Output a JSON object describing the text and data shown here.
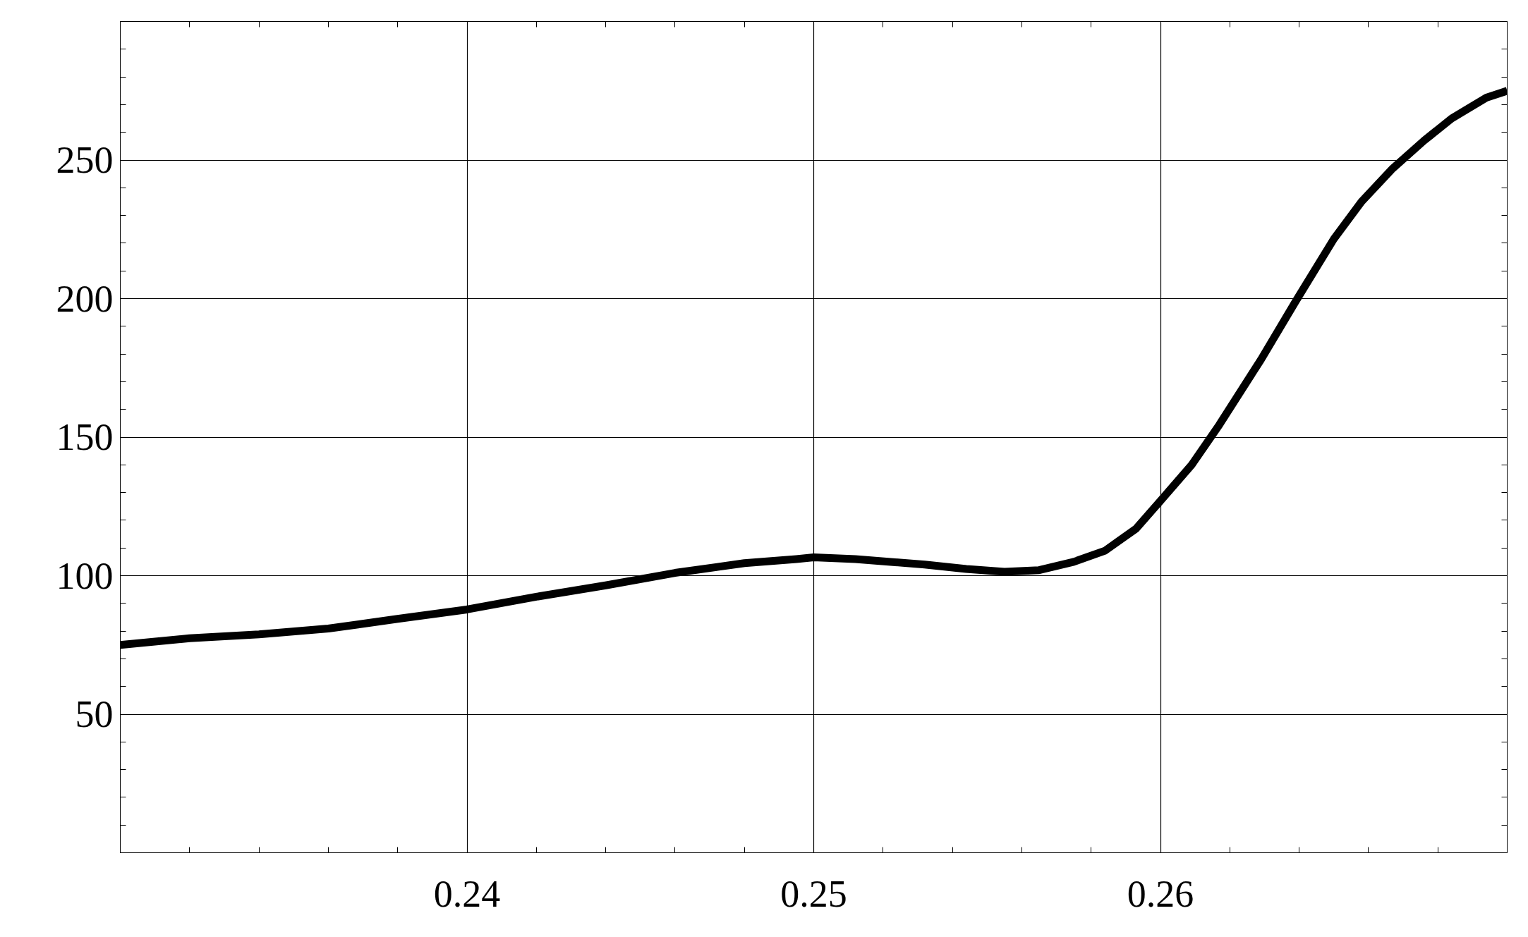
{
  "chart_data": {
    "type": "line",
    "x": [
      0.23,
      0.232,
      0.234,
      0.236,
      0.238,
      0.24,
      0.242,
      0.244,
      0.246,
      0.248,
      0.2495,
      0.25,
      0.2512,
      0.2532,
      0.2544,
      0.2555,
      0.2565,
      0.2575,
      0.2584,
      0.2593,
      0.26,
      0.2609,
      0.2617,
      0.2629,
      0.2639,
      0.265,
      0.2658,
      0.2667,
      0.2676,
      0.2684,
      0.2694,
      0.27
    ],
    "series": [
      {
        "color": "#000000",
        "values": [
          75,
          77.4,
          78.8,
          80.9,
          84.4,
          87.8,
          92.4,
          96.5,
          101,
          104.5,
          106,
          106.6,
          106,
          104,
          102.4,
          101.4,
          102,
          105,
          109,
          117,
          127,
          140,
          154.5,
          178,
          199,
          221.5,
          235,
          247,
          257,
          265,
          272.5,
          275
        ]
      }
    ],
    "xlim": [
      0.23,
      0.27
    ],
    "ylim": [
      0,
      300
    ],
    "xticks": [
      0.24,
      0.25,
      0.26
    ],
    "yticks": [
      50,
      100,
      150,
      200,
      250
    ],
    "grid": true,
    "marker": "none",
    "line_style": "solid"
  }
}
